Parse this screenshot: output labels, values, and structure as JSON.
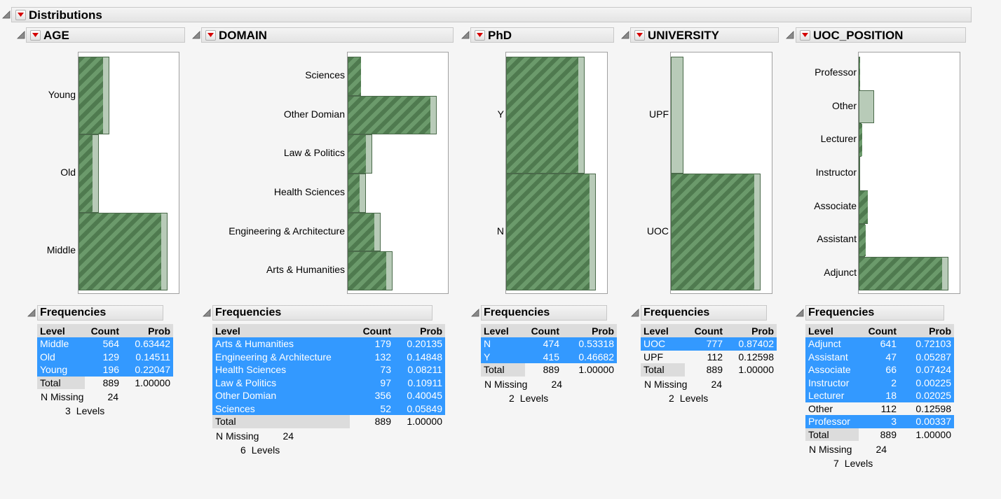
{
  "title": "Distributions",
  "frequencies_label": "Frequencies",
  "columns": {
    "level": "Level",
    "count": "Count",
    "prob": "Prob"
  },
  "missing_label": "N Missing",
  "levels_label": "Levels",
  "colors": {
    "selected": "#3399ff",
    "bar_dark": "#4f7a4f",
    "bar_light": "#b8cbb8"
  },
  "panels": [
    {
      "name": "AGE",
      "chart_data": {
        "type": "bar",
        "orientation": "horizontal",
        "categories": [
          "Young",
          "Old",
          "Middle"
        ],
        "values": [
          196,
          129,
          564
        ],
        "selected_values": [
          196,
          129,
          564
        ]
      },
      "freq": {
        "rows": [
          {
            "level": "Middle",
            "count": "564",
            "prob": "0.63442",
            "selected": true
          },
          {
            "level": "Old",
            "count": "129",
            "prob": "0.14511",
            "selected": true
          },
          {
            "level": "Young",
            "count": "196",
            "prob": "0.22047",
            "selected": true
          }
        ],
        "total": {
          "level": "Total",
          "count": "889",
          "prob": "1.00000"
        },
        "missing": "24",
        "levels": "3"
      }
    },
    {
      "name": "DOMAIN",
      "chart_data": {
        "type": "bar",
        "orientation": "horizontal",
        "categories": [
          "Sciences",
          "Other Domian",
          "Law & Politics",
          "Health Sciences",
          "Engineering & Architecture",
          "Arts & Humanities"
        ],
        "values": [
          52,
          356,
          97,
          73,
          132,
          179
        ],
        "selected_values": [
          52,
          356,
          97,
          73,
          132,
          179
        ]
      },
      "freq": {
        "rows": [
          {
            "level": "Arts & Humanities",
            "count": "179",
            "prob": "0.20135",
            "selected": true
          },
          {
            "level": "Engineering & Architecture",
            "count": "132",
            "prob": "0.14848",
            "selected": true
          },
          {
            "level": "Health Sciences",
            "count": "73",
            "prob": "0.08211",
            "selected": true
          },
          {
            "level": "Law & Politics",
            "count": "97",
            "prob": "0.10911",
            "selected": true
          },
          {
            "level": "Other Domian",
            "count": "356",
            "prob": "0.40045",
            "selected": true
          },
          {
            "level": "Sciences",
            "count": "52",
            "prob": "0.05849",
            "selected": true
          }
        ],
        "total": {
          "level": "Total",
          "count": "889",
          "prob": "1.00000"
        },
        "missing": "24",
        "levels": "6"
      }
    },
    {
      "name": "PhD",
      "chart_data": {
        "type": "bar",
        "orientation": "horizontal",
        "categories": [
          "Y",
          "N"
        ],
        "values": [
          415,
          474
        ],
        "selected_values": [
          415,
          474
        ]
      },
      "freq": {
        "rows": [
          {
            "level": "N",
            "count": "474",
            "prob": "0.53318",
            "selected": true
          },
          {
            "level": "Y",
            "count": "415",
            "prob": "0.46682",
            "selected": true
          }
        ],
        "total": {
          "level": "Total",
          "count": "889",
          "prob": "1.00000"
        },
        "missing": "24",
        "levels": "2"
      }
    },
    {
      "name": "UNIVERSITY",
      "chart_data": {
        "type": "bar",
        "orientation": "horizontal",
        "categories": [
          "UPF",
          "UOC"
        ],
        "values": [
          112,
          777
        ],
        "selected_values": [
          0,
          777
        ]
      },
      "freq": {
        "rows": [
          {
            "level": "UOC",
            "count": "777",
            "prob": "0.87402",
            "selected": true
          },
          {
            "level": "UPF",
            "count": "112",
            "prob": "0.12598",
            "selected": false
          }
        ],
        "total": {
          "level": "Total",
          "count": "889",
          "prob": "1.00000"
        },
        "missing": "24",
        "levels": "2"
      }
    },
    {
      "name": "UOC_POSITION",
      "chart_data": {
        "type": "bar",
        "orientation": "horizontal",
        "categories": [
          "Professor",
          "Other",
          "Lecturer",
          "Instructor",
          "Associate",
          "Assistant",
          "Adjunct"
        ],
        "values": [
          3,
          112,
          18,
          2,
          66,
          47,
          641
        ],
        "selected_values": [
          3,
          0,
          18,
          2,
          66,
          47,
          641
        ]
      },
      "freq": {
        "rows": [
          {
            "level": "Adjunct",
            "count": "641",
            "prob": "0.72103",
            "selected": true
          },
          {
            "level": "Assistant",
            "count": "47",
            "prob": "0.05287",
            "selected": true
          },
          {
            "level": "Associate",
            "count": "66",
            "prob": "0.07424",
            "selected": true
          },
          {
            "level": "Instructor",
            "count": "2",
            "prob": "0.00225",
            "selected": true
          },
          {
            "level": "Lecturer",
            "count": "18",
            "prob": "0.02025",
            "selected": true
          },
          {
            "level": "Other",
            "count": "112",
            "prob": "0.12598",
            "selected": false
          },
          {
            "level": "Professor",
            "count": "3",
            "prob": "0.00337",
            "selected": true
          }
        ],
        "total": {
          "level": "Total",
          "count": "889",
          "prob": "1.00000"
        },
        "missing": "24",
        "levels": "7"
      }
    }
  ]
}
